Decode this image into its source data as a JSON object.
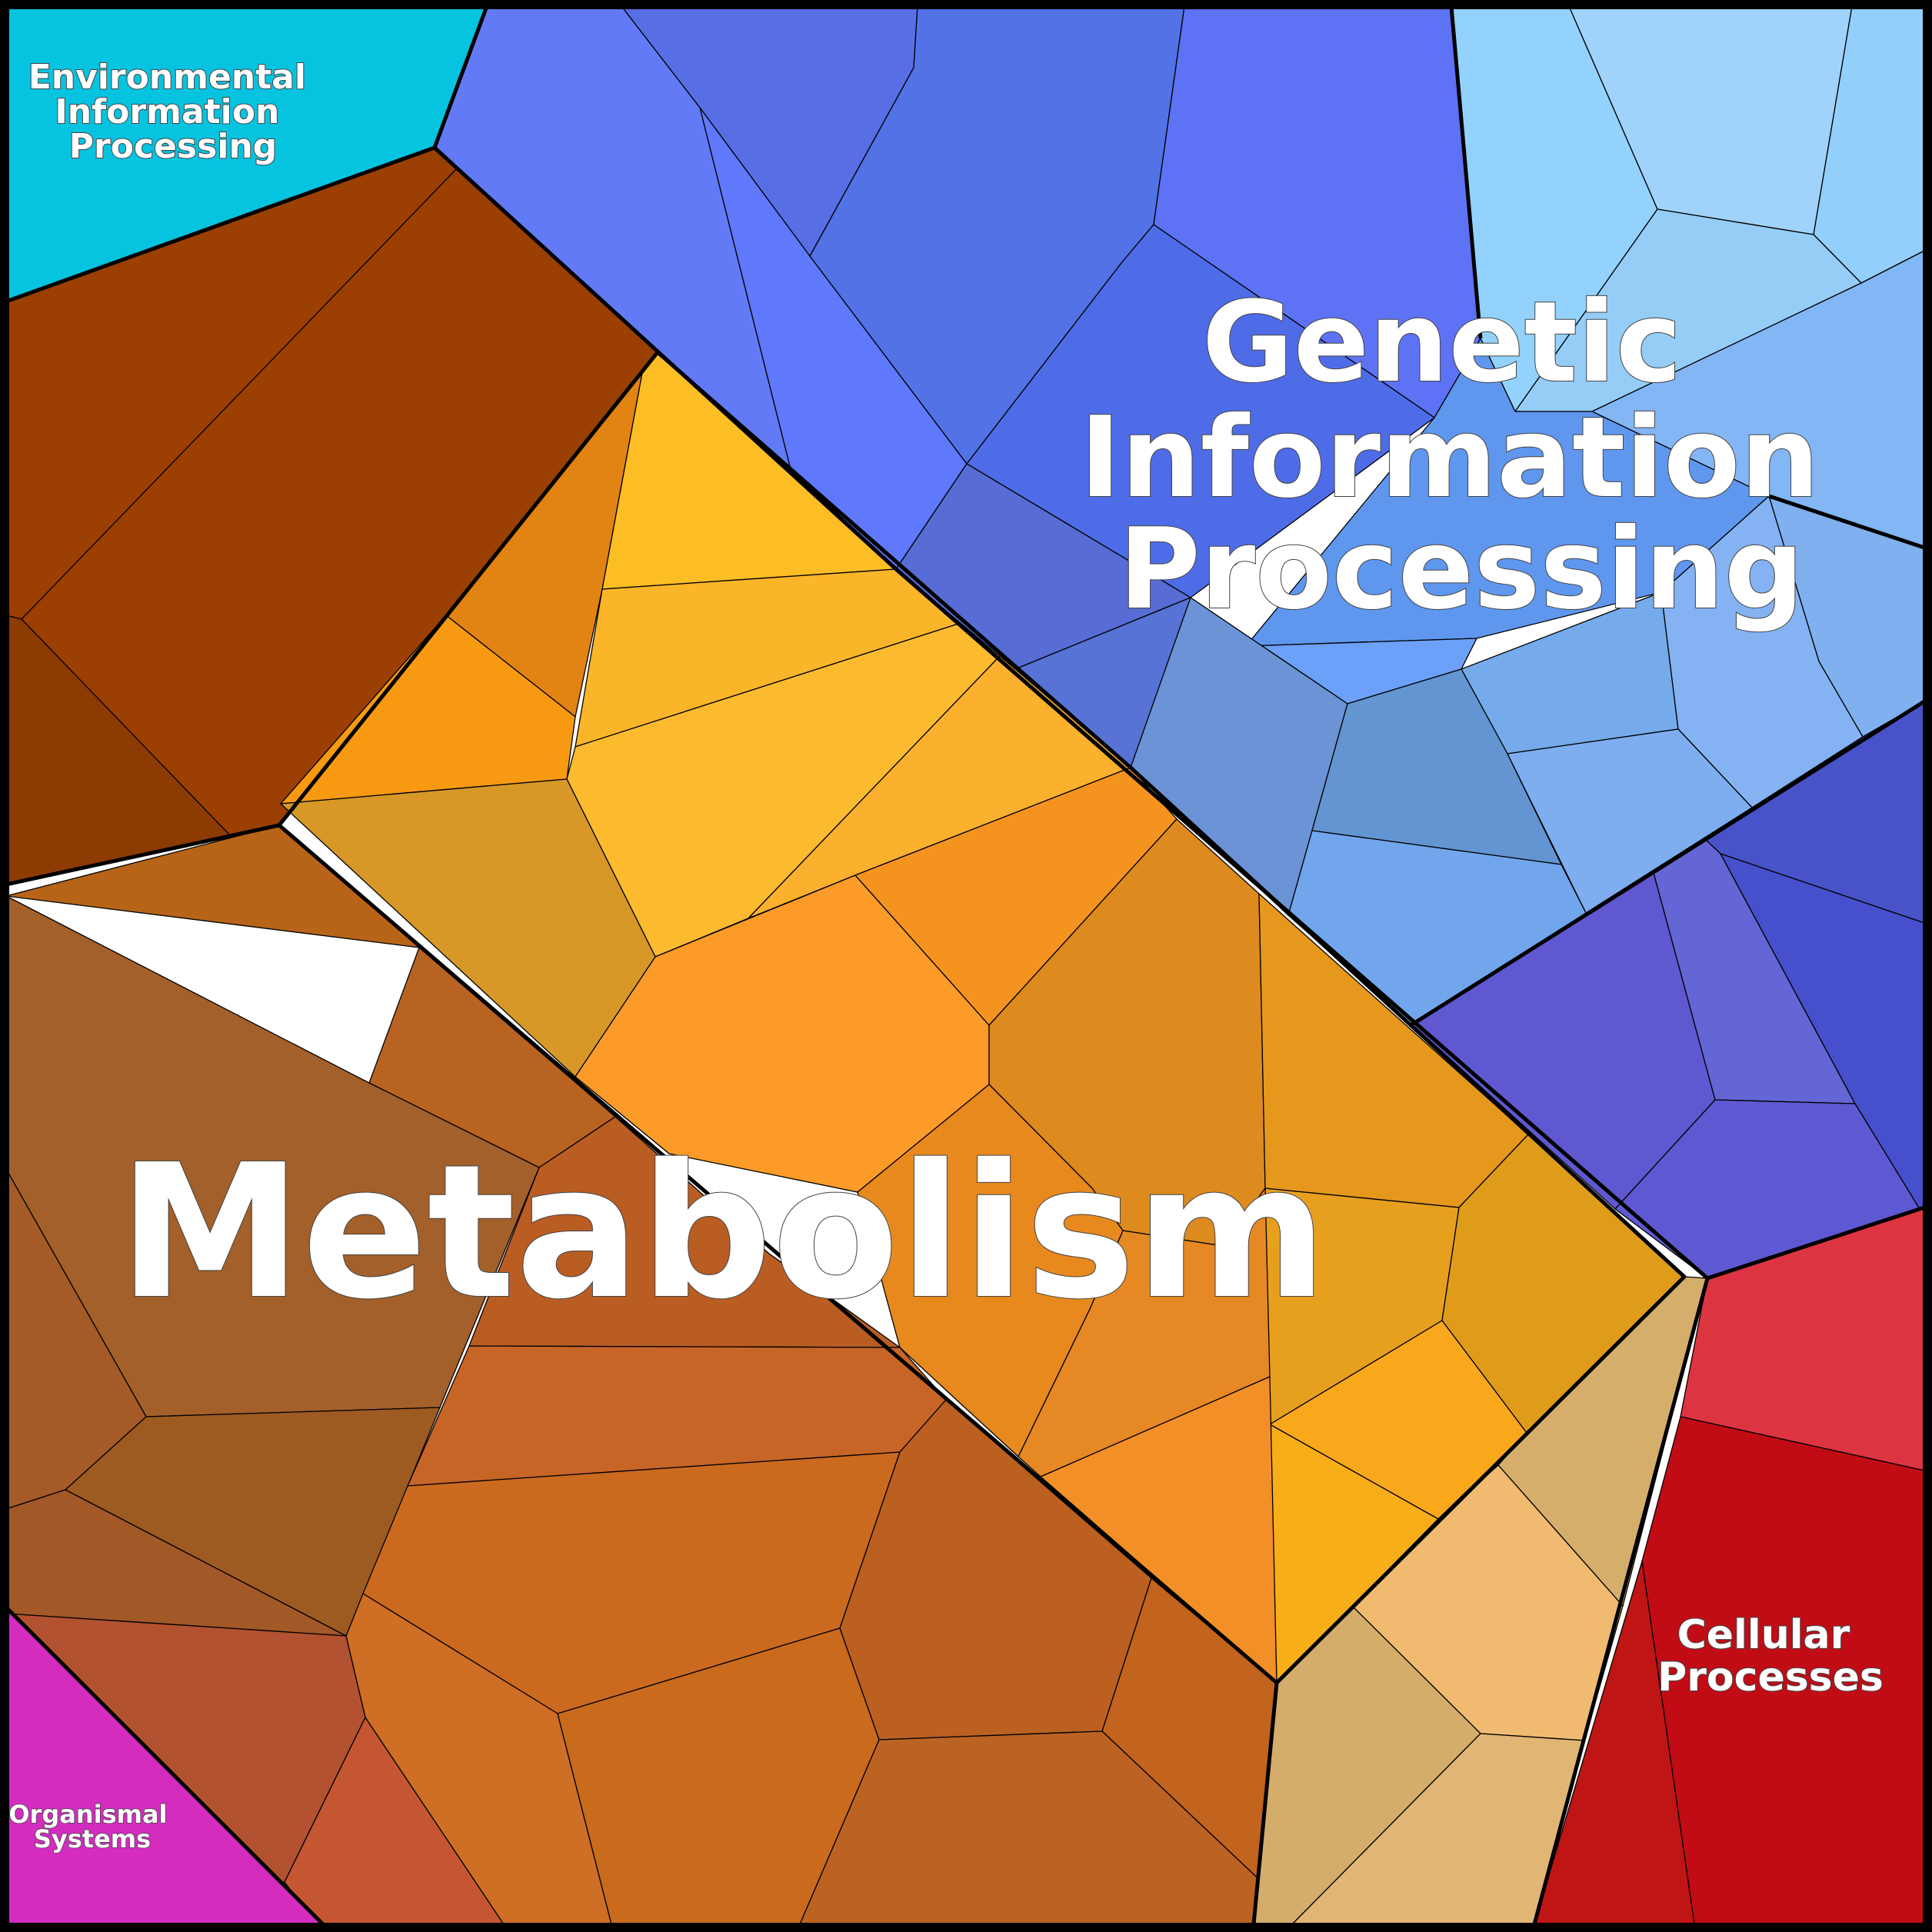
{
  "categories": [
    {
      "id": "metabolism",
      "label_lines": [
        "Metabolism"
      ],
      "color": "#e89020"
    },
    {
      "id": "genetic",
      "label_lines": [
        "Genetic",
        "Information",
        "Processing"
      ],
      "color": "#5b78f0"
    },
    {
      "id": "environmental",
      "label_lines": [
        "Environmental",
        "Information",
        "Processing"
      ],
      "color": "#06c3df"
    },
    {
      "id": "cellular",
      "label_lines": [
        "Cellular",
        "Processes"
      ],
      "color": "#c10c15"
    },
    {
      "id": "organismal",
      "label_lines": [
        "Organismal",
        "Systems"
      ],
      "color": "#d32cbf"
    }
  ],
  "colors": {
    "border": "#000000",
    "label_fill": "#ffffff",
    "label_outline": "#444444"
  }
}
